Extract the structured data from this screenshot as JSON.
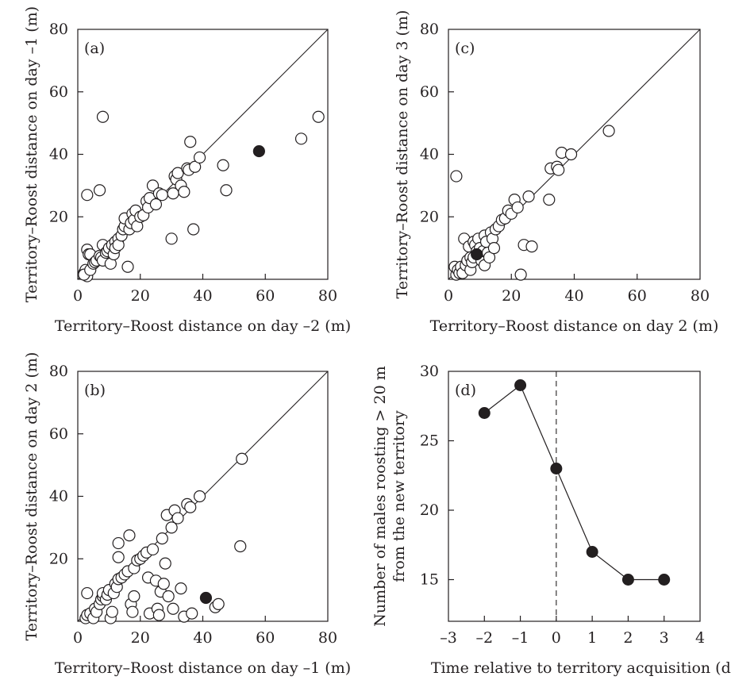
{
  "chart_data": [
    {
      "id": "a",
      "type": "scatter",
      "panel_label": "(a)",
      "xlabel": "Territory–Roost distance on day –2 (m)",
      "ylabel": "Territory–Roost distance on day –1 (m)",
      "xlim": [
        0,
        80
      ],
      "ylim": [
        0,
        80
      ],
      "xticks": [
        "0",
        "20",
        "40",
        "60",
        "80"
      ],
      "yticks": [
        "20",
        "40",
        "60",
        "80"
      ],
      "reference_line": "y = x",
      "points_open": [
        [
          3,
          27
        ],
        [
          7,
          28.5
        ],
        [
          8,
          52
        ],
        [
          3,
          9.5
        ],
        [
          3.5,
          8
        ],
        [
          4,
          8
        ],
        [
          2,
          2
        ],
        [
          2.5,
          3
        ],
        [
          3,
          1
        ],
        [
          2,
          1.5
        ],
        [
          4,
          3
        ],
        [
          5,
          5
        ],
        [
          5.5,
          5.5
        ],
        [
          6,
          6
        ],
        [
          7,
          7.5
        ],
        [
          7.5,
          7
        ],
        [
          8,
          6
        ],
        [
          8,
          11
        ],
        [
          9,
          8.5
        ],
        [
          9.5,
          9
        ],
        [
          10,
          10
        ],
        [
          10.5,
          5
        ],
        [
          11,
          11
        ],
        [
          11.5,
          8
        ],
        [
          12,
          12
        ],
        [
          12,
          10
        ],
        [
          13,
          13
        ],
        [
          13,
          11
        ],
        [
          14,
          14
        ],
        [
          14.5,
          16
        ],
        [
          15,
          17
        ],
        [
          15,
          19.5
        ],
        [
          16,
          4
        ],
        [
          16.5,
          16
        ],
        [
          17,
          18
        ],
        [
          17.5,
          21
        ],
        [
          18,
          19
        ],
        [
          18.5,
          22
        ],
        [
          19,
          17
        ],
        [
          20,
          20
        ],
        [
          21,
          20.5
        ],
        [
          22,
          25
        ],
        [
          22.5,
          23
        ],
        [
          23,
          26
        ],
        [
          24,
          30
        ],
        [
          25,
          24
        ],
        [
          26,
          27.5
        ],
        [
          27,
          27
        ],
        [
          30,
          13
        ],
        [
          30.5,
          27.5
        ],
        [
          31,
          33
        ],
        [
          31.5,
          32
        ],
        [
          32,
          34
        ],
        [
          33,
          30
        ],
        [
          34,
          28
        ],
        [
          35,
          35.5
        ],
        [
          35.5,
          35
        ],
        [
          36,
          44
        ],
        [
          37,
          16
        ],
        [
          37.5,
          36
        ],
        [
          39,
          39
        ],
        [
          46.5,
          36.5
        ],
        [
          47.5,
          28.5
        ],
        [
          71.5,
          45
        ],
        [
          77,
          52
        ]
      ],
      "points_filled": [
        [
          58,
          41
        ]
      ]
    },
    {
      "id": "b",
      "type": "scatter",
      "panel_label": "(b)",
      "xlabel": "Territory–Roost distance on day –1 (m)",
      "ylabel": "Territory–Roost distance on day 2 (m)",
      "xlim": [
        0,
        80
      ],
      "ylim": [
        0,
        80
      ],
      "xticks": [
        "0",
        "20",
        "40",
        "60",
        "80"
      ],
      "yticks": [
        "20",
        "40",
        "60",
        "80"
      ],
      "reference_line": "y = x",
      "points_open": [
        [
          3,
          9
        ],
        [
          2.5,
          1
        ],
        [
          3,
          2
        ],
        [
          4,
          2.5
        ],
        [
          5,
          1
        ],
        [
          5.5,
          4
        ],
        [
          6,
          3
        ],
        [
          7,
          5.5
        ],
        [
          7.5,
          7
        ],
        [
          8,
          8
        ],
        [
          8,
          9
        ],
        [
          9,
          7
        ],
        [
          9.5,
          8.5
        ],
        [
          10,
          10
        ],
        [
          10.5,
          1
        ],
        [
          11,
          3
        ],
        [
          11.5,
          9
        ],
        [
          12,
          12
        ],
        [
          12.5,
          11
        ],
        [
          13,
          13.5
        ],
        [
          13,
          20.5
        ],
        [
          13,
          25
        ],
        [
          14,
          14
        ],
        [
          15,
          15
        ],
        [
          16,
          16
        ],
        [
          16.5,
          27.5
        ],
        [
          17,
          5.5
        ],
        [
          17.5,
          3
        ],
        [
          18,
          17
        ],
        [
          18,
          8
        ],
        [
          19,
          19.5
        ],
        [
          20,
          20
        ],
        [
          21,
          21
        ],
        [
          22,
          22
        ],
        [
          22.5,
          14
        ],
        [
          23,
          2.5
        ],
        [
          24,
          23
        ],
        [
          25,
          13
        ],
        [
          25.5,
          4
        ],
        [
          26,
          2
        ],
        [
          26.5,
          9.5
        ],
        [
          27,
          26.5
        ],
        [
          27.5,
          12
        ],
        [
          28,
          18.5
        ],
        [
          28.5,
          34
        ],
        [
          29,
          8
        ],
        [
          30,
          30
        ],
        [
          30.5,
          4
        ],
        [
          31,
          35.5
        ],
        [
          32,
          33
        ],
        [
          33,
          10.5
        ],
        [
          34,
          1.5
        ],
        [
          35,
          37.5
        ],
        [
          36,
          36.5
        ],
        [
          36.5,
          2.5
        ],
        [
          39,
          40
        ],
        [
          44,
          4.5
        ],
        [
          45,
          5.5
        ],
        [
          52,
          24
        ],
        [
          52.5,
          52
        ]
      ],
      "points_filled": [
        [
          41,
          7.5
        ]
      ]
    },
    {
      "id": "c",
      "type": "scatter",
      "panel_label": "(c)",
      "xlabel": "Territory–Roost distance on day 2 (m)",
      "ylabel": "Territory–Roost distance on day 3 (m)",
      "xlim": [
        0,
        80
      ],
      "ylim": [
        0,
        80
      ],
      "xticks": [
        "0",
        "20",
        "40",
        "60",
        "80"
      ],
      "yticks": [
        "20",
        "40",
        "60",
        "80"
      ],
      "reference_line": "y = x",
      "points_open": [
        [
          2.5,
          33
        ],
        [
          2,
          4
        ],
        [
          2.5,
          1.5
        ],
        [
          3,
          3
        ],
        [
          3.5,
          2
        ],
        [
          4,
          4
        ],
        [
          4.5,
          2
        ],
        [
          5,
          13
        ],
        [
          5.5,
          4.5
        ],
        [
          6,
          6
        ],
        [
          6.5,
          10.5
        ],
        [
          7,
          7
        ],
        [
          7,
          3
        ],
        [
          7.5,
          5.5
        ],
        [
          8,
          7
        ],
        [
          8,
          12
        ],
        [
          8.5,
          11
        ],
        [
          9,
          9
        ],
        [
          9.5,
          13
        ],
        [
          10,
          10
        ],
        [
          10.5,
          6
        ],
        [
          11,
          9
        ],
        [
          11.5,
          4.5
        ],
        [
          11.5,
          14
        ],
        [
          12,
          12
        ],
        [
          12.5,
          8.5
        ],
        [
          13,
          7
        ],
        [
          13.5,
          15
        ],
        [
          14,
          13
        ],
        [
          14.5,
          10
        ],
        [
          15,
          16
        ],
        [
          16,
          17
        ],
        [
          17,
          19
        ],
        [
          18,
          19.5
        ],
        [
          19,
          22
        ],
        [
          20,
          21
        ],
        [
          21,
          25.5
        ],
        [
          22,
          23
        ],
        [
          23,
          1.5
        ],
        [
          24,
          11
        ],
        [
          25.5,
          26.5
        ],
        [
          26.5,
          10.5
        ],
        [
          32,
          25.5
        ],
        [
          32.5,
          35.5
        ],
        [
          34.5,
          36
        ],
        [
          35,
          35
        ],
        [
          36,
          40.5
        ],
        [
          39,
          40
        ],
        [
          51,
          47.5
        ]
      ],
      "points_filled": [
        [
          9,
          8
        ]
      ]
    },
    {
      "id": "d",
      "type": "line",
      "panel_label": "(d)",
      "xlabel": "Time relative to territory acquisition (d)",
      "ylabel_line1": "Number of males roosting > 20 m",
      "ylabel_line2": "from the new territory",
      "xlim": [
        -3,
        4
      ],
      "ylim": [
        12,
        30
      ],
      "xticks": [
        "–3",
        "–2",
        "–1",
        "0",
        "1",
        "2",
        "3",
        "4"
      ],
      "yticks": [
        "15",
        "20",
        "25",
        "30"
      ],
      "x": [
        -2,
        -1,
        0,
        1,
        2,
        3
      ],
      "y": [
        27,
        29,
        23,
        17,
        15,
        15
      ],
      "vertical_reference_x": 0
    }
  ]
}
